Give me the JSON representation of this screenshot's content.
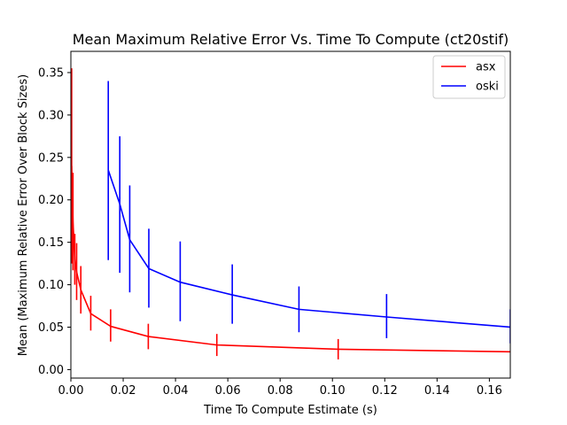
{
  "chart_data": {
    "type": "line",
    "title": "Mean Maximum Relative Error Vs. Time To Compute (ct20stif)",
    "xlabel": "Time To Compute Estimate (s)",
    "ylabel": "Mean (Maximum Relative Error Over Block Sizes)",
    "xlim": [
      0,
      0.168
    ],
    "ylim": [
      -0.01,
      0.375
    ],
    "xticks": [
      "0.00",
      "0.02",
      "0.04",
      "0.06",
      "0.08",
      "0.10",
      "0.12",
      "0.14",
      "0.16"
    ],
    "yticks": [
      "0.00",
      "0.05",
      "0.10",
      "0.15",
      "0.20",
      "0.25",
      "0.30",
      "0.35"
    ],
    "legend_position": "top-right",
    "grid": false,
    "series": [
      {
        "name": "asx",
        "color": "#ff0000",
        "points": [
          {
            "x": 0.0003,
            "y": 0.24,
            "err_low": 0.125,
            "err_high": 0.355
          },
          {
            "x": 0.0008,
            "y": 0.175,
            "err_low": 0.117,
            "err_high": 0.232
          },
          {
            "x": 0.0015,
            "y": 0.13,
            "err_low": 0.1,
            "err_high": 0.16
          },
          {
            "x": 0.0022,
            "y": 0.115,
            "err_low": 0.082,
            "err_high": 0.149
          },
          {
            "x": 0.0038,
            "y": 0.094,
            "err_low": 0.066,
            "err_high": 0.122
          },
          {
            "x": 0.0076,
            "y": 0.066,
            "err_low": 0.046,
            "err_high": 0.087
          },
          {
            "x": 0.0152,
            "y": 0.051,
            "err_low": 0.033,
            "err_high": 0.071
          },
          {
            "x": 0.0296,
            "y": 0.039,
            "err_low": 0.024,
            "err_high": 0.054
          },
          {
            "x": 0.0558,
            "y": 0.029,
            "err_low": 0.016,
            "err_high": 0.042
          },
          {
            "x": 0.1022,
            "y": 0.024,
            "err_low": 0.012,
            "err_high": 0.036
          },
          {
            "x": 0.168,
            "y": 0.021
          }
        ]
      },
      {
        "name": "oski",
        "color": "#0000ff",
        "points": [
          {
            "x": 0.0143,
            "y": 0.235,
            "err_low": 0.129,
            "err_high": 0.34
          },
          {
            "x": 0.0187,
            "y": 0.195,
            "err_low": 0.114,
            "err_high": 0.275
          },
          {
            "x": 0.0225,
            "y": 0.153,
            "err_low": 0.091,
            "err_high": 0.217
          },
          {
            "x": 0.0298,
            "y": 0.119,
            "err_low": 0.073,
            "err_high": 0.166
          },
          {
            "x": 0.0418,
            "y": 0.103,
            "err_low": 0.057,
            "err_high": 0.151
          },
          {
            "x": 0.0617,
            "y": 0.088,
            "err_low": 0.054,
            "err_high": 0.124
          },
          {
            "x": 0.0872,
            "y": 0.071,
            "err_low": 0.044,
            "err_high": 0.098
          },
          {
            "x": 0.1207,
            "y": 0.062,
            "err_low": 0.037,
            "err_high": 0.089
          },
          {
            "x": 0.168,
            "y": 0.05,
            "err_low": 0.031,
            "err_high": 0.071
          }
        ]
      }
    ]
  }
}
